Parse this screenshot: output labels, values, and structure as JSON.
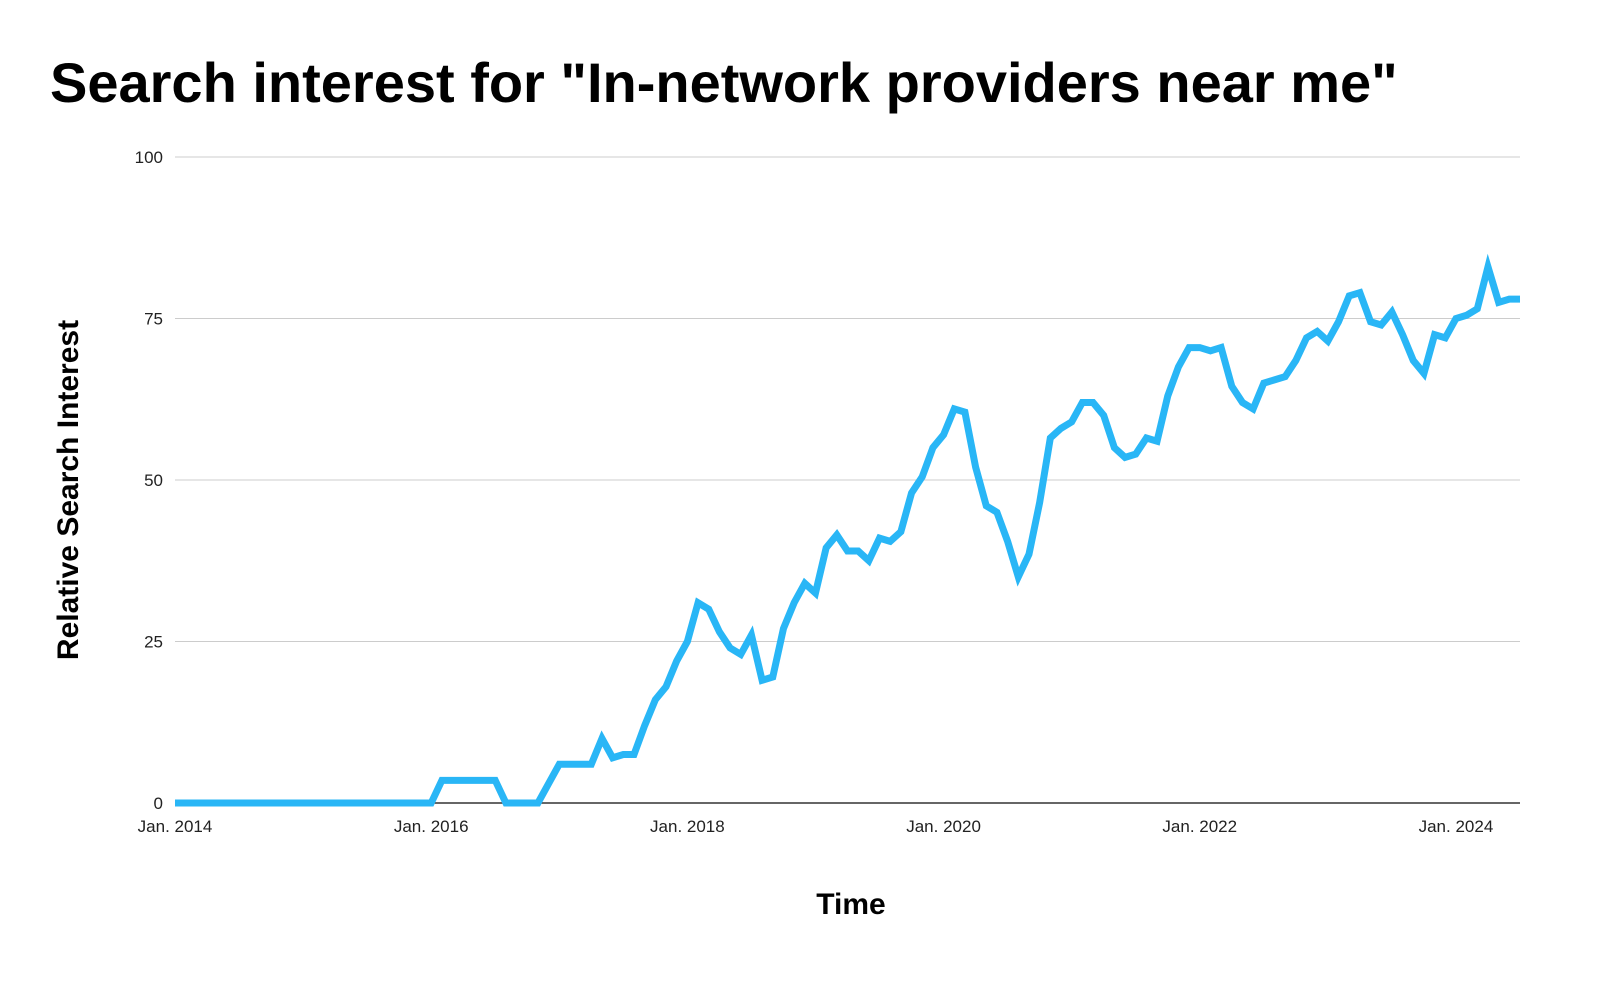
{
  "title": "Search interest for \"In-network providers near me\"",
  "colors": {
    "line": "#29B6F6",
    "grid": "#CCCCCC",
    "baseline": "#333333",
    "text": "#000000"
  },
  "chart_data": {
    "type": "line",
    "title": "Search interest for \"In-network providers near me\"",
    "xlabel": "Time",
    "ylabel": "Relative Search Interest",
    "x_ticks": [
      "Jan. 2014",
      "Jan. 2016",
      "Jan. 2018",
      "Jan. 2020",
      "Jan. 2022",
      "Jan. 2024"
    ],
    "y_ticks": [
      "0",
      "25",
      "50",
      "75",
      "100"
    ],
    "xlim": [
      "2014-01",
      "2024-07"
    ],
    "ylim": [
      0,
      100
    ],
    "grid": true,
    "legend": "none",
    "x": [
      "2014-01",
      "2014-02",
      "2014-03",
      "2014-04",
      "2014-05",
      "2014-06",
      "2014-07",
      "2014-08",
      "2014-09",
      "2014-10",
      "2014-11",
      "2014-12",
      "2015-01",
      "2015-02",
      "2015-03",
      "2015-04",
      "2015-05",
      "2015-06",
      "2015-07",
      "2015-08",
      "2015-09",
      "2015-10",
      "2015-11",
      "2015-12",
      "2016-01",
      "2016-02",
      "2016-03",
      "2016-04",
      "2016-05",
      "2016-06",
      "2016-07",
      "2016-08",
      "2016-09",
      "2016-10",
      "2016-11",
      "2016-12",
      "2017-01",
      "2017-02",
      "2017-03",
      "2017-04",
      "2017-05",
      "2017-06",
      "2017-07",
      "2017-08",
      "2017-09",
      "2017-10",
      "2017-11",
      "2017-12",
      "2018-01",
      "2018-02",
      "2018-03",
      "2018-04",
      "2018-05",
      "2018-06",
      "2018-07",
      "2018-08",
      "2018-09",
      "2018-10",
      "2018-11",
      "2018-12",
      "2019-01",
      "2019-02",
      "2019-03",
      "2019-04",
      "2019-05",
      "2019-06",
      "2019-07",
      "2019-08",
      "2019-09",
      "2019-10",
      "2019-11",
      "2019-12",
      "2020-01",
      "2020-02",
      "2020-03",
      "2020-04",
      "2020-05",
      "2020-06",
      "2020-07",
      "2020-08",
      "2020-09",
      "2020-10",
      "2020-11",
      "2020-12",
      "2021-01",
      "2021-02",
      "2021-03",
      "2021-04",
      "2021-05",
      "2021-06",
      "2021-07",
      "2021-08",
      "2021-09",
      "2021-10",
      "2021-11",
      "2021-12",
      "2022-01",
      "2022-02",
      "2022-03",
      "2022-04",
      "2022-05",
      "2022-06",
      "2022-07",
      "2022-08",
      "2022-09",
      "2022-10",
      "2022-11",
      "2022-12",
      "2023-01",
      "2023-02",
      "2023-03",
      "2023-04",
      "2023-05",
      "2023-06",
      "2023-07",
      "2023-08",
      "2023-09",
      "2023-10",
      "2023-11",
      "2023-12",
      "2024-01",
      "2024-02",
      "2024-03",
      "2024-04",
      "2024-05",
      "2024-06",
      "2024-07"
    ],
    "series": [
      {
        "values": [
          0,
          0,
          0,
          0,
          0,
          0,
          0,
          0,
          0,
          0,
          0,
          0,
          0,
          0,
          0,
          0,
          0,
          0,
          0,
          0,
          0,
          0,
          0,
          0,
          0,
          3.5,
          3.5,
          3.5,
          3.5,
          3.5,
          3.5,
          0,
          0,
          0,
          0,
          3,
          6,
          6,
          6,
          6,
          10,
          7,
          7.5,
          7.5,
          12,
          16,
          18,
          22,
          25,
          31,
          30,
          26.5,
          24,
          23,
          26,
          19,
          19.5,
          27,
          31,
          34,
          32.5,
          39.5,
          41.5,
          39,
          39,
          37.5,
          41,
          40.5,
          42,
          48,
          50.5,
          55,
          57,
          61,
          60.5,
          52,
          46,
          45,
          40.5,
          35,
          38.5,
          46.5,
          56.5,
          58,
          59,
          62,
          62,
          60,
          55,
          53.5,
          54,
          56.5,
          56,
          63,
          67.5,
          70.5,
          70.5,
          70,
          70.5,
          64.5,
          62,
          61,
          65,
          65.5,
          66,
          68.5,
          72,
          73,
          71.5,
          74.5,
          78.5,
          79,
          74.5,
          74,
          76,
          72.5,
          68.5,
          66.5,
          72.5,
          72,
          75,
          75.5,
          76.5,
          83,
          77.5,
          78,
          78
        ]
      }
    ]
  }
}
